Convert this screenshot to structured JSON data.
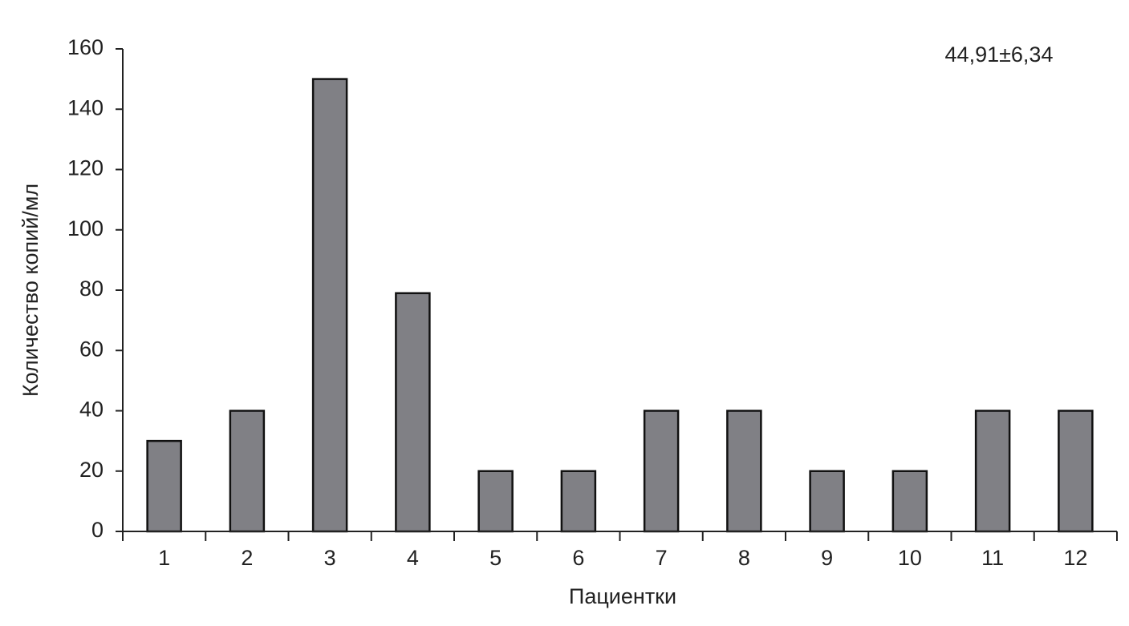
{
  "chart_data": {
    "type": "bar",
    "annotation": "44,91±6,34",
    "y_label": "Количество копий/мл",
    "x_label": "Пациентки",
    "categories": [
      "1",
      "2",
      "3",
      "4",
      "5",
      "6",
      "7",
      "8",
      "9",
      "10",
      "11",
      "12"
    ],
    "values": [
      30,
      40,
      150,
      79,
      20,
      20,
      40,
      40,
      20,
      20,
      40,
      40
    ],
    "color": "#808085",
    "ylim": [
      0,
      160
    ],
    "yticks": [
      0,
      20,
      40,
      60,
      80,
      100,
      120,
      140,
      160
    ],
    "grid": false
  }
}
